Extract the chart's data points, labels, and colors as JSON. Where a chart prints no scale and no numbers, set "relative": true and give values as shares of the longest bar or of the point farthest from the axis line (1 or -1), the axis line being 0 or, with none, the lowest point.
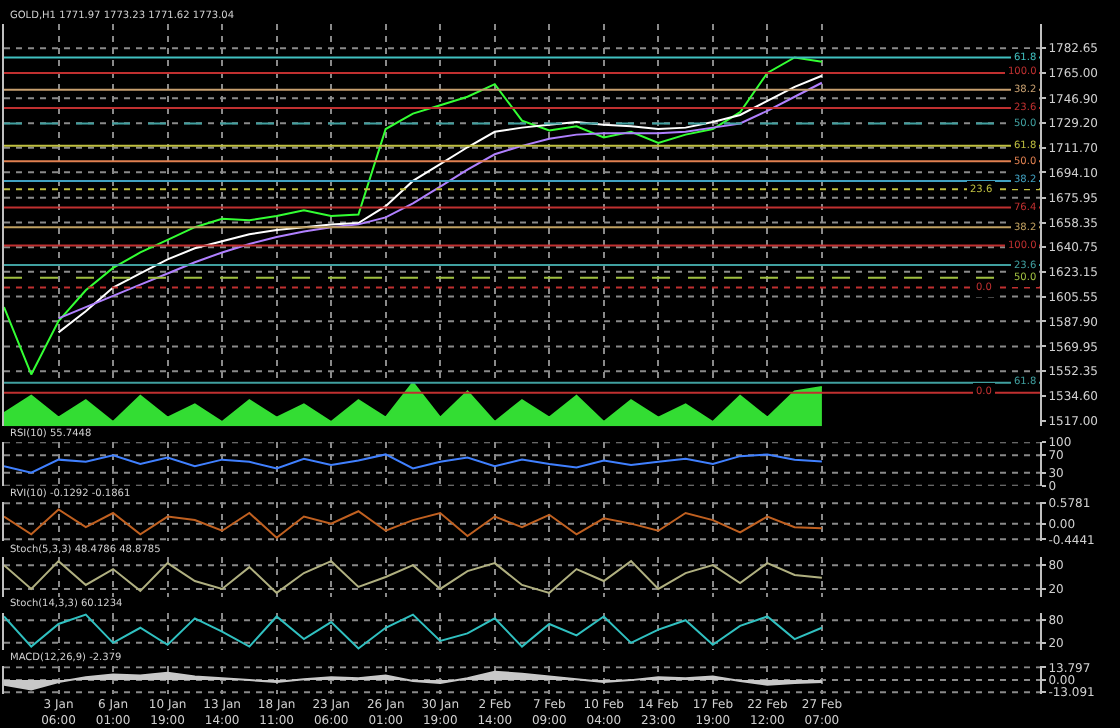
{
  "chart_data": [
    {
      "type": "line",
      "title": "GOLD,H1 1771.97 1773.23 1771.62 1773.04",
      "grid": true,
      "tick_labels": "y",
      "categories": [
        null,
        null,
        null,
        null,
        null,
        null,
        null,
        null,
        null,
        null,
        null,
        null,
        null,
        null,
        null,
        null,
        null,
        null,
        null,
        null,
        null,
        null,
        null,
        null,
        null,
        null,
        null,
        null,
        null,
        null,
        null,
        null,
        null,
        null,
        null,
        null,
        null,
        null,
        null
      ],
      "ylim": [
        1513,
        1800
      ],
      "yticks": [
        {
          "value": 1517.0,
          "label": "1517.00"
        },
        {
          "value": 1534.6,
          "label": "1534.60"
        },
        {
          "value": 1552.35,
          "label": "1552.35"
        },
        {
          "value": 1569.95,
          "label": "1569.95"
        },
        {
          "value": 1587.9,
          "label": "1587.90"
        },
        {
          "value": 1605.55,
          "label": "1605.55"
        },
        {
          "value": 1623.15,
          "label": "1623.15"
        },
        {
          "value": 1640.75,
          "label": "1640.75"
        },
        {
          "value": 1658.35,
          "label": "1658.35"
        },
        {
          "value": 1675.95,
          "label": "1675.95"
        },
        {
          "value": 1694.1,
          "label": "1694.10"
        },
        {
          "value": 1711.7,
          "label": "1711.70"
        },
        {
          "value": 1729.2,
          "label": "1729.20"
        },
        {
          "value": 1746.9,
          "label": "1746.90"
        },
        {
          "value": 1765.0,
          "label": "1765.00"
        },
        {
          "value": 1782.65,
          "label": "1782.65"
        }
      ],
      "series": [
        {
          "color": "#33ff33",
          "values": [
            1598,
            1550,
            1588,
            1610,
            1626,
            1637,
            1646,
            1655,
            1661,
            1660,
            1663,
            1667,
            1663,
            1664,
            1725,
            1736,
            1742,
            1748,
            1757,
            1731,
            1724,
            1727,
            1719,
            1723,
            1715,
            1721,
            1725,
            1737,
            1765,
            1776,
            1773,
            null,
            null,
            null,
            null,
            null,
            null,
            null,
            null
          ]
        },
        {
          "color": "#ffffff",
          "values": [
            null,
            null,
            1580,
            1595,
            1612,
            1622,
            1632,
            1640,
            1645,
            1650,
            1653,
            1655,
            1657,
            1658,
            1670,
            1688,
            1700,
            1712,
            1723,
            1726,
            1728,
            1730,
            1728,
            1727,
            1725,
            1726,
            1730,
            1735,
            1745,
            1755,
            1763,
            null,
            null,
            null,
            null,
            null,
            null,
            null,
            null
          ]
        },
        {
          "color": "#b080ff",
          "values": [
            null,
            null,
            1590,
            1598,
            1606,
            1614,
            1622,
            1630,
            1637,
            1643,
            1648,
            1652,
            1655,
            1657,
            1662,
            1672,
            1684,
            1696,
            1707,
            1713,
            1718,
            1721,
            1722,
            1722,
            1722,
            1723,
            1726,
            1729,
            1738,
            1748,
            1758,
            null,
            null,
            null,
            null,
            null,
            null,
            null,
            null
          ]
        }
      ],
      "ref_lines": [
        {
          "axis": "y",
          "value": 1776,
          "color": "#40c0c0"
        },
        {
          "axis": "y",
          "value": 1765,
          "color": "#c03030"
        },
        {
          "axis": "y",
          "value": 1753,
          "color": "#c8a070"
        },
        {
          "axis": "y",
          "value": 1740,
          "color": "#c03030"
        },
        {
          "axis": "y",
          "value": 1729,
          "color": "#40a0a0",
          "line_style": "dashed"
        },
        {
          "axis": "y",
          "value": 1713,
          "color": "#c0c040"
        },
        {
          "axis": "y",
          "value": 1702,
          "color": "#e08050"
        },
        {
          "axis": "y",
          "value": 1688,
          "color": "#40a0c0"
        },
        {
          "axis": "y",
          "value": 1682,
          "color": "#c0c040",
          "line_style": "dotted"
        },
        {
          "axis": "y",
          "value": 1669,
          "color": "#c03030"
        },
        {
          "axis": "y",
          "value": 1655,
          "color": "#c0a060"
        },
        {
          "axis": "y",
          "value": 1642,
          "color": "#c03030"
        },
        {
          "axis": "y",
          "value": 1628,
          "color": "#40a0a0"
        },
        {
          "axis": "y",
          "value": 1619,
          "color": "#a0c040",
          "line_style": "dashed"
        },
        {
          "axis": "y",
          "value": 1612,
          "color": "#c03030",
          "line_style": "dotted"
        },
        {
          "axis": "y",
          "value": 1544,
          "color": "#40a0a0"
        },
        {
          "axis": "y",
          "value": 1537,
          "color": "#c03030"
        }
      ],
      "annotations": [
        {
          "text": "61.8",
          "y": 1776
        },
        {
          "text": "100.0",
          "y": 1765
        },
        {
          "text": "38.2",
          "y": 1753
        },
        {
          "text": "23.6",
          "y": 1740
        },
        {
          "text": "50.0",
          "y": 1729
        },
        {
          "text": "61.8",
          "y": 1713
        },
        {
          "text": "50.0",
          "y": 1702
        },
        {
          "text": "38.2",
          "y": 1688
        },
        {
          "text": "23.6",
          "y": 1682
        },
        {
          "text": "76.4",
          "y": 1669
        },
        {
          "text": "38.2",
          "y": 1655
        },
        {
          "text": "100.0",
          "y": 1642
        },
        {
          "text": "23.6",
          "y": 1628
        },
        {
          "text": "50.0",
          "y": 1619
        },
        {
          "text": "0.0",
          "y": 1612
        },
        {
          "text": "61.8",
          "y": 1544
        },
        {
          "text": "0.0",
          "y": 1537
        }
      ]
    },
    {
      "type": "area",
      "relative": true,
      "tick_labels": false,
      "categories": [
        null,
        null,
        null,
        null,
        null,
        null,
        null,
        null,
        null,
        null,
        null,
        null,
        null,
        null,
        null,
        null,
        null,
        null,
        null,
        null,
        null,
        null,
        null,
        null,
        null,
        null,
        null,
        null,
        null,
        null,
        null,
        null,
        null,
        null,
        null,
        null,
        null,
        null,
        null
      ],
      "series": [
        {
          "color": "#33dd33",
          "values": [
            0.3,
            0.7,
            0.2,
            0.6,
            0.1,
            0.7,
            0.2,
            0.5,
            0.1,
            0.6,
            0.2,
            0.5,
            0.1,
            0.6,
            0.2,
            1.0,
            0.2,
            0.8,
            0.1,
            0.6,
            0.2,
            0.7,
            0.1,
            0.6,
            0.2,
            0.5,
            0.1,
            0.7,
            0.2,
            0.8,
            0.9,
            null,
            null,
            null,
            null,
            null,
            null,
            null,
            null
          ]
        }
      ]
    },
    {
      "type": "line",
      "title": "RSI(10) 55.7448",
      "grid": true,
      "tick_labels": "y",
      "ylim": [
        0,
        100
      ],
      "yticks": [
        0,
        30,
        70,
        100
      ],
      "categories": [
        null,
        null,
        null,
        null,
        null,
        null,
        null,
        null,
        null,
        null,
        null,
        null,
        null,
        null,
        null,
        null,
        null,
        null,
        null,
        null,
        null,
        null,
        null,
        null,
        null,
        null,
        null,
        null,
        null,
        null,
        null,
        null,
        null,
        null,
        null,
        null,
        null,
        null,
        null
      ],
      "series": [
        {
          "color": "#4080ff",
          "values": [
            45,
            30,
            60,
            55,
            70,
            50,
            65,
            45,
            60,
            55,
            40,
            62,
            48,
            58,
            72,
            40,
            55,
            65,
            45,
            60,
            50,
            42,
            58,
            48,
            55,
            62,
            50,
            68,
            72,
            60,
            56,
            null,
            null,
            null,
            null,
            null,
            null,
            null,
            null
          ]
        }
      ]
    },
    {
      "type": "line",
      "title": "RVI(10) -0.1292 -0.1861",
      "grid": true,
      "tick_labels": "y",
      "ylim": [
        -0.5,
        0.62
      ],
      "yticks": [
        {
          "value": -0.4441,
          "label": "-0.4441"
        },
        {
          "value": 0,
          "label": "0.00"
        },
        {
          "value": 0.5781,
          "label": "0.5781"
        }
      ],
      "categories": [
        null,
        null,
        null,
        null,
        null,
        null,
        null,
        null,
        null,
        null,
        null,
        null,
        null,
        null,
        null,
        null,
        null,
        null,
        null,
        null,
        null,
        null,
        null,
        null,
        null,
        null,
        null,
        null,
        null,
        null,
        null,
        null,
        null,
        null,
        null,
        null,
        null,
        null,
        null
      ],
      "series": [
        {
          "color": "#c06020",
          "values": [
            0.2,
            -0.3,
            0.4,
            -0.1,
            0.3,
            -0.3,
            0.2,
            0.1,
            -0.2,
            0.3,
            -0.4,
            0.2,
            0.0,
            0.35,
            -0.2,
            0.1,
            0.3,
            -0.35,
            0.2,
            -0.1,
            0.25,
            -0.3,
            0.15,
            0.0,
            -0.2,
            0.3,
            0.1,
            -0.25,
            0.2,
            -0.1,
            -0.13,
            null,
            null,
            null,
            null,
            null,
            null,
            null,
            null
          ]
        }
      ]
    },
    {
      "type": "line",
      "title": "Stoch(5,3,3) 48.4786 48.8785",
      "grid": true,
      "tick_labels": "y",
      "ylim": [
        0,
        100
      ],
      "yticks": [
        20,
        80
      ],
      "categories": [
        null,
        null,
        null,
        null,
        null,
        null,
        null,
        null,
        null,
        null,
        null,
        null,
        null,
        null,
        null,
        null,
        null,
        null,
        null,
        null,
        null,
        null,
        null,
        null,
        null,
        null,
        null,
        null,
        null,
        null,
        null,
        null,
        null,
        null,
        null,
        null,
        null,
        null,
        null
      ],
      "series": [
        {
          "color": "#b0b080",
          "values": [
            80,
            20,
            90,
            30,
            70,
            15,
            85,
            40,
            20,
            75,
            10,
            60,
            90,
            25,
            50,
            80,
            20,
            65,
            85,
            30,
            10,
            70,
            40,
            90,
            20,
            60,
            80,
            35,
            85,
            55,
            48,
            null,
            null,
            null,
            null,
            null,
            null,
            null,
            null
          ]
        }
      ]
    },
    {
      "type": "line",
      "title": "Stoch(14,3,3) 60.1234",
      "grid": true,
      "tick_labels": "y",
      "ylim": [
        0,
        100
      ],
      "yticks": [
        20,
        80
      ],
      "categories": [
        null,
        null,
        null,
        null,
        null,
        null,
        null,
        null,
        null,
        null,
        null,
        null,
        null,
        null,
        null,
        null,
        null,
        null,
        null,
        null,
        null,
        null,
        null,
        null,
        null,
        null,
        null,
        null,
        null,
        null,
        null,
        null,
        null,
        null,
        null,
        null,
        null,
        null,
        null
      ],
      "series": [
        {
          "color": "#30c0c0",
          "values": [
            90,
            10,
            70,
            95,
            20,
            60,
            15,
            85,
            50,
            10,
            90,
            30,
            75,
            5,
            60,
            95,
            25,
            45,
            85,
            10,
            70,
            40,
            90,
            20,
            55,
            80,
            15,
            65,
            90,
            30,
            60,
            null,
            null,
            null,
            null,
            null,
            null,
            null,
            null
          ]
        }
      ]
    },
    {
      "type": "area",
      "title": "MACD(12,26,9) -2.379",
      "grid": true,
      "ylim": [
        -15,
        15
      ],
      "yticks": [
        {
          "value": -13.091,
          "label": "-13.091"
        },
        {
          "value": 0,
          "label": "0.00"
        },
        {
          "value": 13.797,
          "label": "13.797"
        }
      ],
      "categories": [
        null,
        null,
        "3 Jan 06:00",
        null,
        "6 Jan 01:00",
        null,
        "10 Jan 19:00",
        null,
        "13 Jan 14:00",
        null,
        "18 Jan 11:00",
        null,
        "23 Jan 06:00",
        null,
        "26 Jan 01:00",
        null,
        "30 Jan 19:00",
        null,
        "2 Feb 14:00",
        null,
        "7 Feb 09:00",
        null,
        "10 Feb 04:00",
        null,
        "14 Feb 23:00",
        null,
        "17 Feb 19:00",
        null,
        "22 Feb 12:00",
        null,
        "27 Feb 07:00",
        null,
        null,
        null,
        null,
        null,
        null,
        null,
        null
      ],
      "series": [
        {
          "color": "#c8c8c8",
          "values": [
            -5,
            -10,
            -2,
            3,
            6,
            5,
            8,
            4,
            2,
            0,
            -2,
            1,
            3,
            2,
            5,
            -1,
            -3,
            2,
            9,
            7,
            4,
            1,
            -2,
            0,
            3,
            2,
            4,
            -1,
            -5,
            -3,
            -2,
            null,
            null,
            null,
            null,
            null,
            null,
            null,
            null
          ]
        }
      ]
    }
  ]
}
